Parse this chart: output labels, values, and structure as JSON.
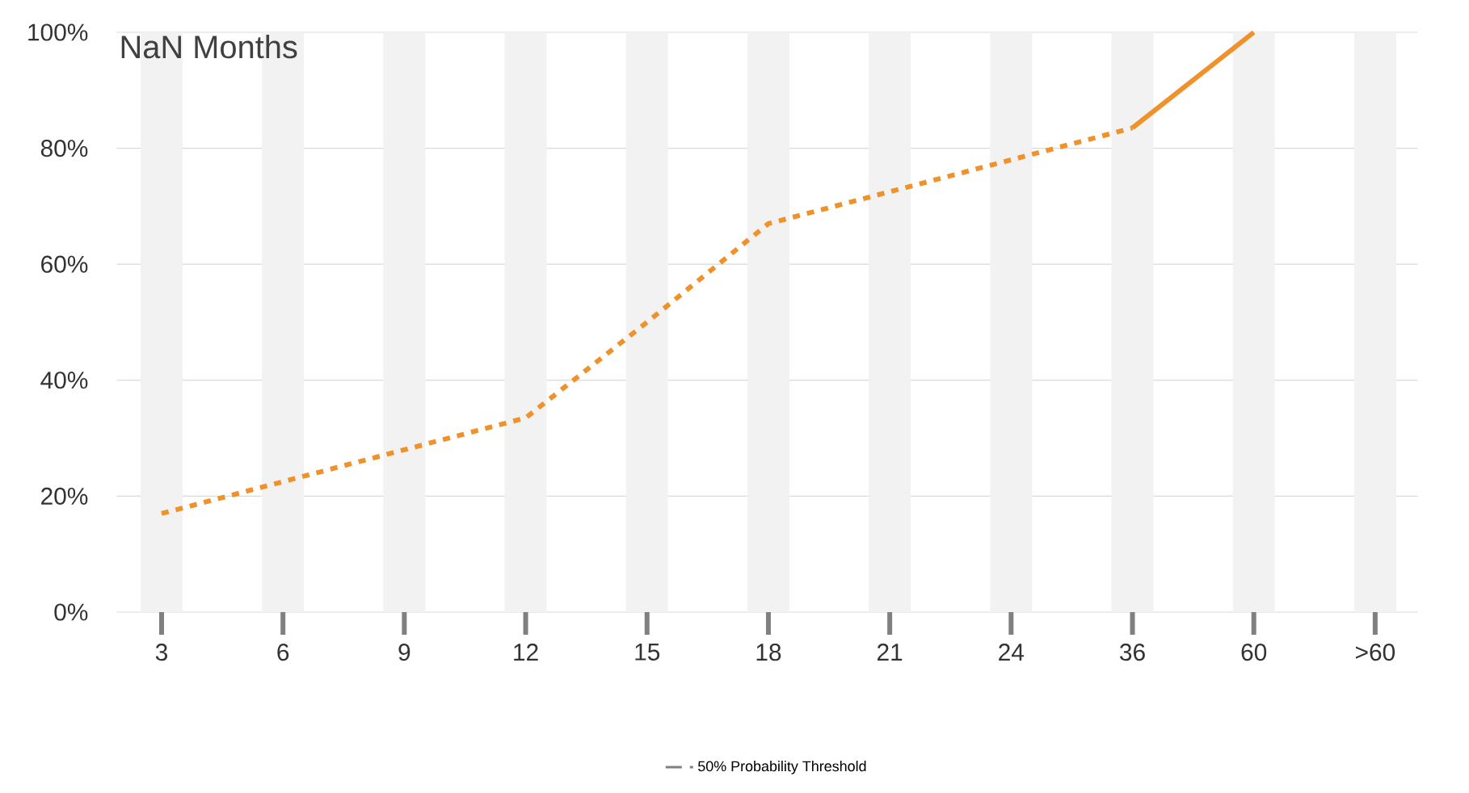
{
  "chart_data": {
    "type": "line",
    "title": "NaN Months",
    "categories": [
      "3",
      "6",
      "9",
      "12",
      "15",
      "18",
      "21",
      "24",
      "36",
      "60",
      ">60"
    ],
    "series": [
      {
        "type": "bar",
        "color": "#f2f2f2",
        "values": [
          100,
          100,
          100,
          100,
          100,
          100,
          100,
          100,
          100,
          100,
          100
        ]
      },
      {
        "color": "#f0922b",
        "line_style": "dotted",
        "values": [
          17,
          22.5,
          28,
          33.5,
          50,
          67,
          72.5,
          78,
          83.5,
          null,
          null
        ]
      },
      {
        "color": "#f0922b",
        "line_style": "solid",
        "values": [
          null,
          null,
          null,
          null,
          null,
          null,
          null,
          null,
          83.5,
          100,
          null
        ]
      },
      {
        "name": "50% Probability Threshold",
        "color": "#808080",
        "line_style": "dashed",
        "values": [
          null,
          null,
          null,
          null,
          null,
          null,
          null,
          null,
          null,
          null,
          null
        ]
      }
    ],
    "ylim": [
      0,
      100
    ],
    "yticks": [
      {
        "value": 0,
        "label": "0%"
      },
      {
        "value": 20,
        "label": "20%"
      },
      {
        "value": 40,
        "label": "40%"
      },
      {
        "value": 60,
        "label": "60%"
      },
      {
        "value": 80,
        "label": "80%"
      },
      {
        "value": 100,
        "label": "100%"
      }
    ],
    "grid": "y",
    "legend": "bottom",
    "marker": "none"
  }
}
